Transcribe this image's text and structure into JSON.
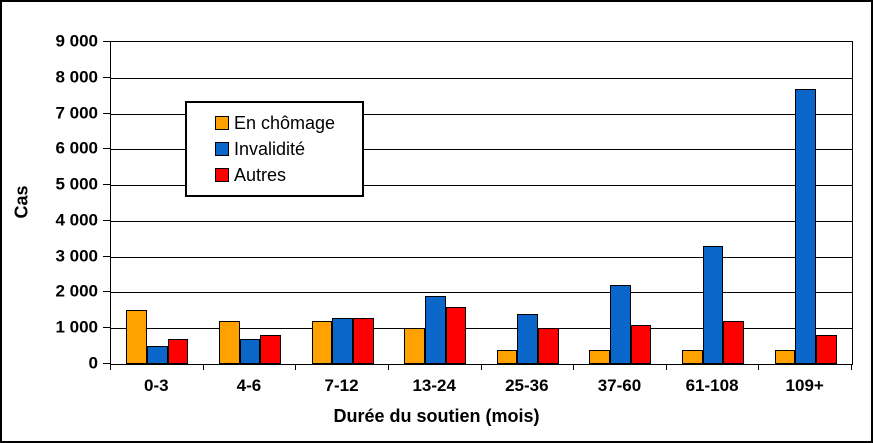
{
  "chart_data": {
    "type": "bar",
    "title": "",
    "ylabel": "Cas",
    "xlabel": "Durée du soutien (mois)",
    "categories": [
      "0-3",
      "4-6",
      "7-12",
      "13-24",
      "25-36",
      "37-60",
      "61-108",
      "109+"
    ],
    "series": [
      {
        "name": "En chômage",
        "color": "#FFA200",
        "values": [
          1500,
          1200,
          1200,
          1000,
          400,
          400,
          400,
          400
        ]
      },
      {
        "name": "Invalidité",
        "color": "#0A66C8",
        "values": [
          500,
          700,
          1300,
          1900,
          1400,
          2200,
          3300,
          7700
        ]
      },
      {
        "name": "Autres",
        "color": "#FF0000",
        "values": [
          700,
          800,
          1300,
          1600,
          1000,
          1100,
          1200,
          800
        ]
      }
    ],
    "ylim": [
      0,
      9000
    ],
    "ytick_step": 1000,
    "ytick_labels": [
      "0",
      "1 000",
      "2 000",
      "3 000",
      "4 000",
      "5 000",
      "6 000",
      "7 000",
      "8 000",
      "9 000"
    ],
    "grid": true,
    "gridline_color": "#000000",
    "legend_position": "inside-upper-left"
  }
}
